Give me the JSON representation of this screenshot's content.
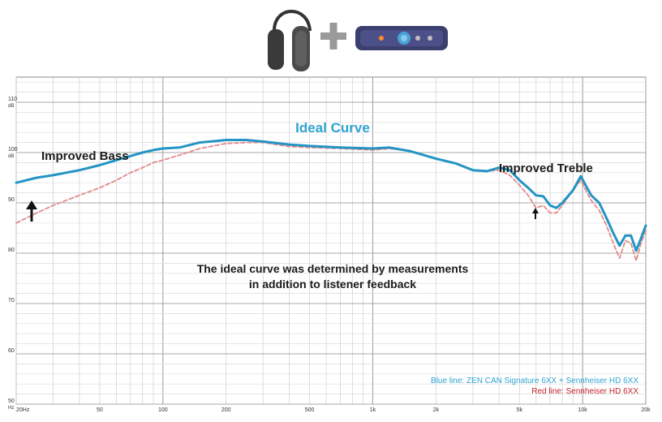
{
  "chart_data": {
    "type": "line",
    "title": "Ideal Curve",
    "x_scale": "log",
    "xlim": [
      20,
      20000
    ],
    "ylim": [
      50,
      115
    ],
    "grid": true,
    "x_tick_labels": [
      {
        "value": 20,
        "label": "20Hz"
      },
      {
        "value": 50,
        "label": "50"
      },
      {
        "value": 100,
        "label": "100"
      },
      {
        "value": 200,
        "label": "200"
      },
      {
        "value": 500,
        "label": "500"
      },
      {
        "value": 1000,
        "label": "1k"
      },
      {
        "value": 2000,
        "label": "2k"
      },
      {
        "value": 5000,
        "label": "5k"
      },
      {
        "value": 10000,
        "label": "10k"
      },
      {
        "value": 20000,
        "label": "20k"
      }
    ],
    "y_tick_labels": [
      {
        "value": 50,
        "label": "50",
        "unit": "Hz"
      },
      {
        "value": 60,
        "label": "60"
      },
      {
        "value": 70,
        "label": "70"
      },
      {
        "value": 80,
        "label": "80"
      },
      {
        "value": 90,
        "label": "90"
      },
      {
        "value": 100,
        "label": "100",
        "unit": "dB"
      },
      {
        "value": 110,
        "label": "110",
        "unit": "dB"
      }
    ],
    "annotations": {
      "bass": "Improved Bass",
      "treble": "Improved Treble",
      "note_line1": "The ideal curve was determined by measurements",
      "note_line2": "in addition to listener feedback"
    },
    "legend": {
      "placement": "bottom-right",
      "entries": [
        {
          "text": "Blue line: ZEN CAN Signature 6XX + Sennheiser HD 6XX",
          "color": "#2ea3d1"
        },
        {
          "text": "Red line: Sennheiser HD 6XX",
          "color": "#c8202a"
        }
      ]
    },
    "series": [
      {
        "color": "#2394c4",
        "style": "solid",
        "points": [
          [
            20,
            94
          ],
          [
            25,
            95
          ],
          [
            30,
            95.5
          ],
          [
            40,
            96.5
          ],
          [
            50,
            97.5
          ],
          [
            60,
            98.5
          ],
          [
            70,
            99.3
          ],
          [
            80,
            100
          ],
          [
            90,
            100.5
          ],
          [
            100,
            100.8
          ],
          [
            120,
            101
          ],
          [
            150,
            102
          ],
          [
            200,
            102.5
          ],
          [
            250,
            102.5
          ],
          [
            300,
            102.2
          ],
          [
            400,
            101.6
          ],
          [
            500,
            101.3
          ],
          [
            700,
            101
          ],
          [
            1000,
            100.8
          ],
          [
            1200,
            101
          ],
          [
            1500,
            100.3
          ],
          [
            2000,
            98.8
          ],
          [
            2500,
            97.8
          ],
          [
            3000,
            96.5
          ],
          [
            3500,
            96.3
          ],
          [
            4000,
            97
          ],
          [
            4500,
            96.5
          ],
          [
            5000,
            94.5
          ],
          [
            5500,
            93
          ],
          [
            6000,
            91.5
          ],
          [
            6500,
            91.3
          ],
          [
            7000,
            89.5
          ],
          [
            7500,
            89
          ],
          [
            8000,
            90
          ],
          [
            9000,
            92.5
          ],
          [
            9800,
            95.3
          ],
          [
            10500,
            93
          ],
          [
            11000,
            91.5
          ],
          [
            12000,
            90
          ],
          [
            13000,
            87
          ],
          [
            14000,
            84
          ],
          [
            15000,
            81.5
          ],
          [
            16000,
            83.5
          ],
          [
            17000,
            83.5
          ],
          [
            18000,
            80.5
          ],
          [
            19000,
            83
          ],
          [
            20000,
            85.5
          ]
        ]
      },
      {
        "color": "#e28a8a",
        "style": "dashed",
        "points": [
          [
            20,
            86
          ],
          [
            25,
            88
          ],
          [
            30,
            89.5
          ],
          [
            40,
            91.5
          ],
          [
            50,
            93
          ],
          [
            60,
            94.5
          ],
          [
            70,
            96
          ],
          [
            80,
            97
          ],
          [
            90,
            98
          ],
          [
            100,
            98.5
          ],
          [
            120,
            99.5
          ],
          [
            150,
            100.8
          ],
          [
            200,
            101.8
          ],
          [
            250,
            102
          ],
          [
            300,
            102
          ],
          [
            400,
            101.2
          ],
          [
            500,
            101
          ],
          [
            700,
            100.8
          ],
          [
            1000,
            100.5
          ],
          [
            1200,
            100.8
          ],
          [
            1500,
            100.3
          ],
          [
            2000,
            98.8
          ],
          [
            2500,
            97.8
          ],
          [
            3000,
            96.5
          ],
          [
            3500,
            96.3
          ],
          [
            4000,
            96.5
          ],
          [
            4500,
            95.5
          ],
          [
            5000,
            93.5
          ],
          [
            5500,
            91.5
          ],
          [
            6000,
            89
          ],
          [
            6500,
            89.5
          ],
          [
            7000,
            88
          ],
          [
            7500,
            88
          ],
          [
            8000,
            89.5
          ],
          [
            9000,
            92.5
          ],
          [
            9800,
            94.5
          ],
          [
            10500,
            92
          ],
          [
            11000,
            90.5
          ],
          [
            12000,
            88.5
          ],
          [
            13000,
            85.5
          ],
          [
            14000,
            82
          ],
          [
            15000,
            79
          ],
          [
            16000,
            82.5
          ],
          [
            17000,
            82
          ],
          [
            18000,
            78.5
          ],
          [
            19000,
            82
          ],
          [
            20000,
            84.5
          ]
        ]
      }
    ]
  }
}
